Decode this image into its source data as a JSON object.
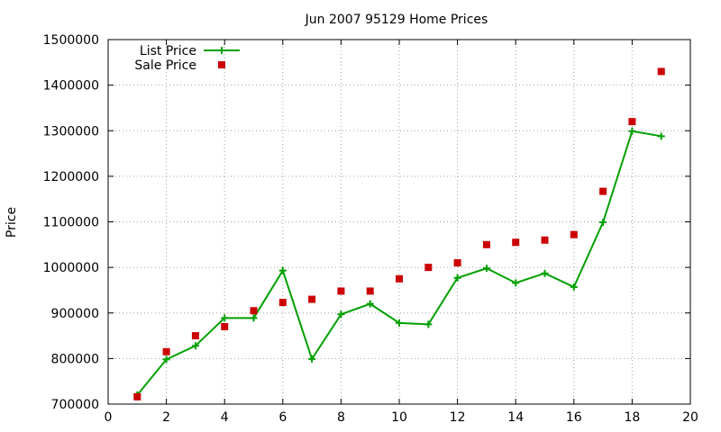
{
  "chart_data": {
    "type": "line",
    "title": "Jun 2007 95129 Home Prices",
    "xlabel": "",
    "ylabel": "Price",
    "xlim": [
      0,
      20
    ],
    "ylim": [
      700000,
      1500000
    ],
    "x_ticks": [
      0,
      2,
      4,
      6,
      8,
      10,
      12,
      14,
      16,
      18,
      20
    ],
    "y_ticks": [
      700000,
      800000,
      900000,
      1000000,
      1100000,
      1200000,
      1300000,
      1400000,
      1500000
    ],
    "grid": true,
    "legend_position": "top-left",
    "series": [
      {
        "name": "List Price",
        "style": "line-plus",
        "color": "#00a000",
        "x": [
          1,
          2,
          3,
          4,
          5,
          6,
          7,
          8,
          9,
          10,
          11,
          12,
          13,
          14,
          15,
          16,
          17,
          18,
          19
        ],
        "y": [
          720000,
          798000,
          828000,
          889000,
          889000,
          993000,
          799000,
          897000,
          920000,
          878000,
          875000,
          977000,
          998000,
          966000,
          987000,
          957000,
          1099000,
          1299000,
          1288000
        ]
      },
      {
        "name": "Sale Price",
        "style": "square-points",
        "color": "#cc0000",
        "x": [
          1,
          2,
          3,
          4,
          5,
          6,
          7,
          8,
          9,
          10,
          11,
          12,
          13,
          14,
          15,
          16,
          17,
          18,
          19
        ],
        "y": [
          716000,
          815000,
          850000,
          870000,
          905000,
          923000,
          930000,
          948000,
          948000,
          975000,
          1000000,
          1010000,
          1050000,
          1055000,
          1060000,
          1072000,
          1167000,
          1320000,
          1430000
        ]
      }
    ]
  }
}
